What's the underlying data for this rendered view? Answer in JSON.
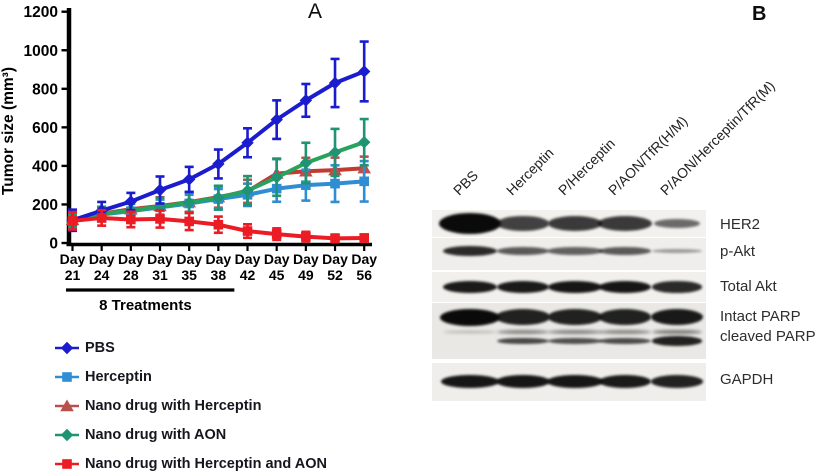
{
  "figure": {
    "panel_a_label": "A",
    "panel_b_label": "B"
  },
  "chart_data": {
    "type": "line",
    "title": "",
    "xlabel": "",
    "ylabel": "Tumor size (mm³)",
    "ylim": [
      0,
      1200
    ],
    "yticks": [
      0,
      200,
      400,
      600,
      800,
      1000,
      1200
    ],
    "categories": [
      "Day 21",
      "Day 24",
      "Day 28",
      "Day 31",
      "Day 35",
      "Day 38",
      "Day 42",
      "Day 45",
      "Day 49",
      "Day 52",
      "Day 56"
    ],
    "grid": false,
    "legend_position": "bottom-left",
    "annotation": {
      "text": "8 Treatments",
      "span_from": "Day 21",
      "span_to": "Day 38"
    },
    "series": [
      {
        "name": "PBS",
        "marker": "diamond",
        "color": "#1b1ccd",
        "values": [
          118,
          168,
          215,
          275,
          330,
          410,
          520,
          640,
          740,
          830,
          890
        ],
        "errors": [
          55,
          45,
          45,
          70,
          65,
          75,
          75,
          100,
          85,
          125,
          155
        ]
      },
      {
        "name": "Herceptin",
        "marker": "square",
        "color": "#2f8dd3",
        "values": [
          112,
          148,
          165,
          185,
          205,
          228,
          250,
          282,
          300,
          308,
          320
        ],
        "errors": [
          30,
          35,
          38,
          40,
          45,
          52,
          58,
          68,
          80,
          95,
          105
        ]
      },
      {
        "name": "Nano drug with Herceptin",
        "marker": "triangle",
        "color": "#b8504c",
        "line_color": "#c23a30",
        "values": [
          120,
          152,
          175,
          192,
          212,
          238,
          268,
          360,
          372,
          378,
          388
        ],
        "errors": [
          30,
          35,
          40,
          45,
          50,
          55,
          60,
          78,
          70,
          65,
          60
        ]
      },
      {
        "name": "Nano drug with AON",
        "marker": "diamond",
        "color": "#1f9372",
        "line_color": "#27a35e",
        "values": [
          115,
          150,
          170,
          188,
          210,
          235,
          272,
          340,
          415,
          470,
          523
        ],
        "errors": [
          30,
          38,
          42,
          46,
          55,
          62,
          75,
          95,
          105,
          122,
          120
        ]
      },
      {
        "name": "Nano drug with Herceptin and AON",
        "marker": "square",
        "color": "#ec1c24",
        "values": [
          115,
          130,
          122,
          125,
          112,
          95,
          62,
          46,
          33,
          24,
          26
        ],
        "errors": [
          45,
          40,
          40,
          45,
          45,
          42,
          35,
          30,
          25,
          20,
          18
        ]
      }
    ]
  },
  "panel_b": {
    "lane_labels": [
      "PBS",
      "Herceptin",
      "P/Herceptin",
      "P/AON/TfR(H/M)",
      "P/AON/Herceptin/TfR(M)"
    ],
    "band_labels": [
      "HER2",
      "p-Akt",
      "Total Akt",
      "Intact PARP",
      "cleaved PARP",
      "GAPDH"
    ],
    "blot_rows": [
      {
        "name": "HER2",
        "intensities": [
          1.0,
          0.65,
          0.7,
          0.7,
          0.4
        ]
      },
      {
        "name": "p-Akt",
        "intensities": [
          0.8,
          0.5,
          0.45,
          0.5,
          0.1
        ]
      },
      {
        "name": "Total Akt",
        "intensities": [
          0.9,
          0.9,
          0.92,
          0.92,
          0.8
        ]
      },
      {
        "name": "Intact PARP",
        "intensities": [
          1.0,
          0.85,
          0.85,
          0.85,
          0.9
        ]
      },
      {
        "name": "PARP faint band",
        "intensities": [
          0.1,
          0.4,
          0.42,
          0.4,
          0.5
        ]
      },
      {
        "name": "cleaved PARP",
        "intensities": [
          0.05,
          0.6,
          0.55,
          0.58,
          0.85
        ]
      },
      {
        "name": "GAPDH",
        "intensities": [
          0.92,
          0.92,
          0.92,
          0.9,
          0.85
        ]
      }
    ]
  }
}
